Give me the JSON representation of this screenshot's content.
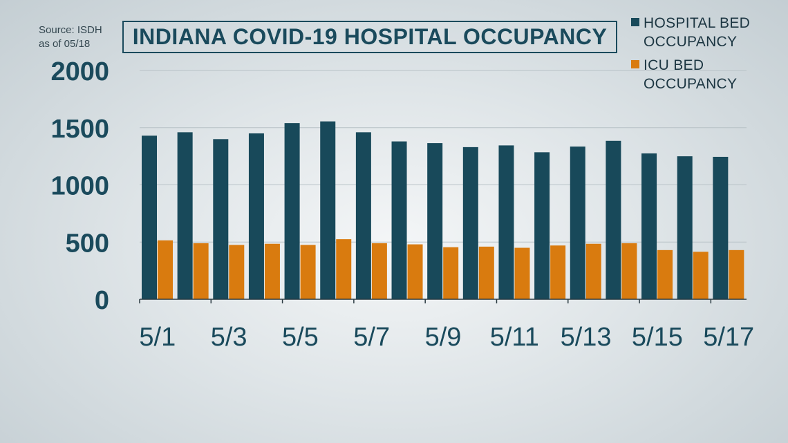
{
  "source_note": {
    "line1": "Source: ISDH",
    "line2": "as of 05/18"
  },
  "colors": {
    "hospital": "#18495a",
    "icu": "#d97b0f",
    "text": "#1a4a5c",
    "grid": "#b7c1c6",
    "axis": "#2a3a41"
  },
  "legend": {
    "hospital_label": "HOSPITAL BED OCCUPANCY",
    "icu_label": "ICU BED OCCUPANCY"
  },
  "chart_data": {
    "type": "bar",
    "title": "INDIANA COVID-19 HOSPITAL OCCUPANCY",
    "xlabel": "",
    "ylabel": "",
    "ylim": [
      0,
      2000
    ],
    "yticks": [
      0,
      500,
      1000,
      1500,
      2000
    ],
    "grid": true,
    "legend_position": "top-right",
    "categories": [
      "5/1",
      "5/2",
      "5/3",
      "5/4",
      "5/5",
      "5/6",
      "5/7",
      "5/8",
      "5/9",
      "5/10",
      "5/11",
      "5/12",
      "5/13",
      "5/14",
      "5/15",
      "5/16",
      "5/17"
    ],
    "xtick_labels": [
      "5/1",
      "5/3",
      "5/5",
      "5/7",
      "5/9",
      "5/11",
      "5/13",
      "5/15",
      "5/17"
    ],
    "series": [
      {
        "name": "HOSPITAL BED OCCUPANCY",
        "color": "#18495a",
        "values": [
          1430,
          1460,
          1400,
          1450,
          1540,
          1555,
          1460,
          1380,
          1365,
          1330,
          1345,
          1285,
          1335,
          1385,
          1275,
          1250,
          1245
        ]
      },
      {
        "name": "ICU BED OCCUPANCY",
        "color": "#d97b0f",
        "values": [
          515,
          490,
          475,
          485,
          475,
          525,
          490,
          480,
          455,
          460,
          450,
          470,
          485,
          490,
          430,
          415,
          430
        ]
      }
    ]
  }
}
